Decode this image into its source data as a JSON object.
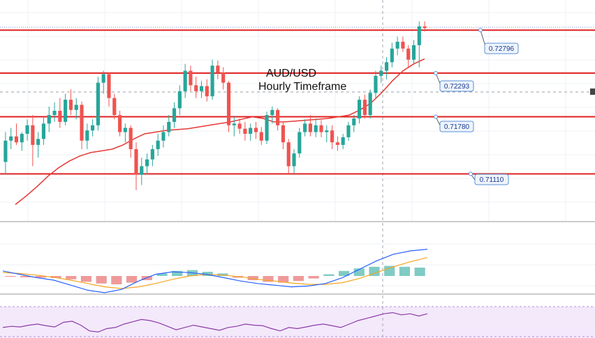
{
  "chart_data": [
    {
      "type": "candlestick",
      "title": "AUD/USD",
      "subtitle": "Hourly Timeframe",
      "ylim": [
        0.7055,
        0.7315
      ],
      "grid": true,
      "colors": {
        "up": "#26a69a",
        "down": "#ef5350",
        "level_line": "#e02020",
        "ma_line": "#e53935",
        "callout_border": "#5a8fd6",
        "callout_fill": "#eef4fc",
        "callout_text": "#1a3b8f"
      },
      "levels": [
        {
          "value": 0.72796,
          "label": "0.72796"
        },
        {
          "value": 0.72293,
          "label": "0.72293"
        },
        {
          "value": 0.7178,
          "label": "0.71780"
        },
        {
          "value": 0.7111,
          "label": "0.71110"
        }
      ],
      "candles": [
        [
          0.7125,
          0.716,
          0.711,
          0.715
        ],
        [
          0.715,
          0.7165,
          0.714,
          0.7155
        ],
        [
          0.7155,
          0.717,
          0.7145,
          0.7148
        ],
        [
          0.7148,
          0.716,
          0.7138,
          0.7158
        ],
        [
          0.7158,
          0.7175,
          0.715,
          0.7168
        ],
        [
          0.7168,
          0.718,
          0.712,
          0.7145
        ],
        [
          0.7145,
          0.716,
          0.713,
          0.7152
        ],
        [
          0.7152,
          0.7178,
          0.7145,
          0.717
        ],
        [
          0.717,
          0.719,
          0.716,
          0.718
        ],
        [
          0.718,
          0.7195,
          0.7172,
          0.7185
        ],
        [
          0.7185,
          0.72,
          0.7165,
          0.7172
        ],
        [
          0.7172,
          0.7205,
          0.7168,
          0.7198
        ],
        [
          0.7198,
          0.721,
          0.718,
          0.7186
        ],
        [
          0.7186,
          0.72,
          0.7175,
          0.7192
        ],
        [
          0.7192,
          0.7196,
          0.714,
          0.715
        ],
        [
          0.715,
          0.717,
          0.714,
          0.7162
        ],
        [
          0.7162,
          0.7175,
          0.7155,
          0.7168
        ],
        [
          0.7168,
          0.7225,
          0.7162,
          0.7218
        ],
        [
          0.7218,
          0.7232,
          0.7205,
          0.7228
        ],
        [
          0.7228,
          0.723,
          0.719,
          0.72
        ],
        [
          0.72,
          0.7205,
          0.7175,
          0.718
        ],
        [
          0.718,
          0.7185,
          0.7155,
          0.716
        ],
        [
          0.716,
          0.717,
          0.7148,
          0.7165
        ],
        [
          0.7165,
          0.7168,
          0.713,
          0.714
        ],
        [
          0.714,
          0.7148,
          0.7092,
          0.711
        ],
        [
          0.711,
          0.713,
          0.7098,
          0.712
        ],
        [
          0.712,
          0.7135,
          0.711,
          0.7128
        ],
        [
          0.7128,
          0.7145,
          0.712,
          0.714
        ],
        [
          0.714,
          0.7158,
          0.7132,
          0.715
        ],
        [
          0.715,
          0.7168,
          0.7142,
          0.716
        ],
        [
          0.716,
          0.718,
          0.7155,
          0.7172
        ],
        [
          0.7172,
          0.7195,
          0.7165,
          0.7188
        ],
        [
          0.7188,
          0.7215,
          0.718,
          0.7208
        ],
        [
          0.7208,
          0.724,
          0.72,
          0.7232
        ],
        [
          0.7232,
          0.7238,
          0.7208,
          0.7215
        ],
        [
          0.7215,
          0.7225,
          0.72,
          0.7208
        ],
        [
          0.7208,
          0.722,
          0.72,
          0.7214
        ],
        [
          0.7214,
          0.7222,
          0.7196,
          0.7202
        ],
        [
          0.7202,
          0.7245,
          0.7198,
          0.7238
        ],
        [
          0.7238,
          0.7244,
          0.7222,
          0.723
        ],
        [
          0.723,
          0.7236,
          0.721,
          0.7218
        ],
        [
          0.7218,
          0.722,
          0.716,
          0.7168
        ],
        [
          0.7168,
          0.7178,
          0.7155,
          0.717
        ],
        [
          0.717,
          0.7176,
          0.7158,
          0.7164
        ],
        [
          0.7164,
          0.7172,
          0.715,
          0.7158
        ],
        [
          0.7158,
          0.717,
          0.715,
          0.7165
        ],
        [
          0.7165,
          0.7172,
          0.7152,
          0.716
        ],
        [
          0.716,
          0.7166,
          0.7145,
          0.715
        ],
        [
          0.715,
          0.7184,
          0.7146,
          0.718
        ],
        [
          0.718,
          0.719,
          0.717,
          0.7186
        ],
        [
          0.7186,
          0.7188,
          0.7162,
          0.7168
        ],
        [
          0.7168,
          0.7172,
          0.714,
          0.7148
        ],
        [
          0.7148,
          0.7152,
          0.7112,
          0.712
        ],
        [
          0.712,
          0.714,
          0.7112,
          0.7135
        ],
        [
          0.7135,
          0.7165,
          0.713,
          0.716
        ],
        [
          0.716,
          0.7175,
          0.7155,
          0.717
        ],
        [
          0.717,
          0.718,
          0.7155,
          0.716
        ],
        [
          0.716,
          0.7176,
          0.7154,
          0.7168
        ],
        [
          0.7168,
          0.7174,
          0.7154,
          0.716
        ],
        [
          0.716,
          0.7168,
          0.7148,
          0.7162
        ],
        [
          0.7162,
          0.7168,
          0.714,
          0.7148
        ],
        [
          0.7148,
          0.7155,
          0.7138,
          0.7145
        ],
        [
          0.7145,
          0.7158,
          0.714,
          0.7154
        ],
        [
          0.7154,
          0.7172,
          0.715,
          0.7168
        ],
        [
          0.7168,
          0.718,
          0.716,
          0.7176
        ],
        [
          0.7176,
          0.7202,
          0.717,
          0.7198
        ],
        [
          0.7198,
          0.7204,
          0.7176,
          0.718
        ],
        [
          0.718,
          0.721,
          0.7176,
          0.7206
        ],
        [
          0.7206,
          0.7232,
          0.72,
          0.7226
        ],
        [
          0.7226,
          0.7238,
          0.7218,
          0.7232
        ],
        [
          0.7232,
          0.7248,
          0.7222,
          0.7242
        ],
        [
          0.7242,
          0.7265,
          0.7236,
          0.7258
        ],
        [
          0.7258,
          0.7272,
          0.725,
          0.7266
        ],
        [
          0.7266,
          0.7272,
          0.7254,
          0.7258
        ],
        [
          0.7258,
          0.7262,
          0.7236,
          0.7245
        ],
        [
          0.7245,
          0.7268,
          0.724,
          0.7262
        ],
        [
          0.7262,
          0.729,
          0.7236,
          0.7284
        ],
        [
          0.7284,
          0.729,
          0.7278,
          0.7282
        ]
      ],
      "ma": [
        [
          0.7075,
          0.7085,
          0.7096,
          0.7108,
          0.7118,
          0.7126,
          0.7132,
          0.7136,
          0.7138,
          0.714,
          0.7145,
          0.7152,
          0.7158,
          0.716,
          0.7162,
          0.7163,
          0.7164,
          0.7166,
          0.7168,
          0.717,
          0.7172,
          0.7175,
          0.7178,
          0.7176,
          0.7172,
          0.7172,
          0.7173,
          0.7174,
          0.7175,
          0.7176,
          0.7178,
          0.718,
          0.7186,
          0.7194,
          0.7206,
          0.722,
          0.7232,
          0.724,
          0.7246
        ]
      ],
      "macd": {
        "macd": [
          0.3,
          0.1,
          -0.1,
          -0.25,
          -0.55,
          -0.85,
          -1.0,
          -0.8,
          -0.3,
          0.1,
          0.25,
          0.2,
          0.1,
          -0.1,
          -0.3,
          -0.45,
          -0.55,
          -0.65,
          -0.6,
          -0.45,
          -0.1,
          0.4,
          0.9,
          1.3,
          1.5,
          1.6
        ],
        "signal": [
          0.2,
          0.15,
          0.05,
          -0.08,
          -0.25,
          -0.45,
          -0.65,
          -0.75,
          -0.65,
          -0.45,
          -0.2,
          0.0,
          0.1,
          0.05,
          -0.05,
          -0.2,
          -0.3,
          -0.42,
          -0.5,
          -0.5,
          -0.4,
          -0.15,
          0.2,
          0.55,
          0.85,
          1.1
        ],
        "histogram": [
          -0.05,
          -0.08,
          -0.1,
          -0.12,
          -0.2,
          -0.35,
          -0.45,
          -0.5,
          -0.4,
          -0.25,
          0.15,
          0.3,
          0.35,
          0.25,
          0.15,
          -0.1,
          -0.25,
          -0.35,
          -0.4,
          -0.3,
          -0.15,
          0.1,
          0.3,
          0.45,
          0.55,
          0.6,
          0.55,
          0.5
        ]
      },
      "rsi": [
        46,
        48,
        47,
        50,
        52,
        49,
        47,
        55,
        57,
        50,
        40,
        38,
        44,
        46,
        52,
        56,
        60,
        58,
        54,
        48,
        42,
        46,
        50,
        47,
        44,
        41,
        46,
        48,
        52,
        50,
        49,
        44,
        40,
        46,
        44,
        47,
        50,
        52,
        49,
        46,
        52,
        58,
        62,
        66,
        70,
        72,
        68,
        70,
        66,
        70
      ]
    }
  ]
}
